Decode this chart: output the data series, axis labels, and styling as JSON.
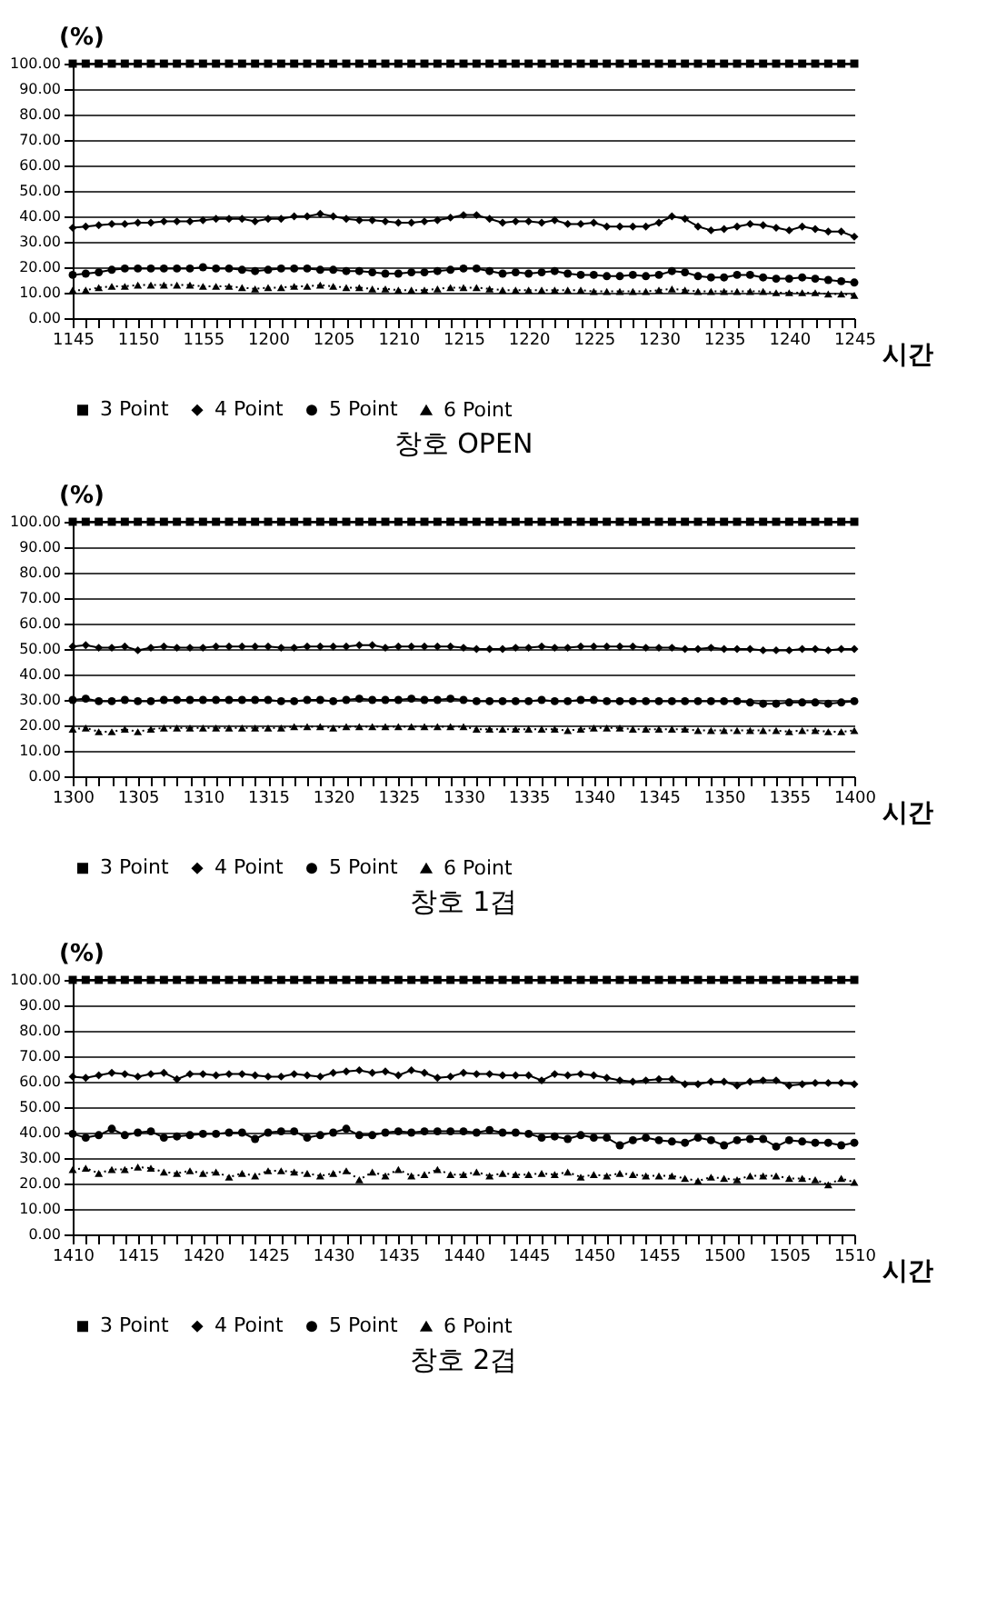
{
  "chart_data": [
    {
      "type": "line",
      "title": "창호 OPEN",
      "xlabel": "시간",
      "ylabel": "(%)",
      "ylim": [
        0,
        100
      ],
      "yticks": [
        {
          "value": 0,
          "label": "0.00"
        },
        {
          "value": 10,
          "label": "10.00"
        },
        {
          "value": 20,
          "label": "20.00"
        },
        {
          "value": 30,
          "label": "30.00"
        },
        {
          "value": 40,
          "label": "40.00"
        },
        {
          "value": 50,
          "label": "50.00"
        },
        {
          "value": 60,
          "label": "60.00"
        },
        {
          "value": 70,
          "label": "70.00"
        },
        {
          "value": 80,
          "label": "80.00"
        },
        {
          "value": 90,
          "label": "90.00"
        },
        {
          "value": 100,
          "label": "100.00"
        }
      ],
      "grid": "y",
      "legend": "bottom",
      "categories": [
        "1145",
        null,
        null,
        null,
        null,
        "1150",
        null,
        null,
        null,
        null,
        "1155",
        null,
        null,
        null,
        null,
        "1200",
        null,
        null,
        null,
        null,
        "1205",
        null,
        null,
        null,
        null,
        "1210",
        null,
        null,
        null,
        null,
        "1215",
        null,
        null,
        null,
        null,
        "1220",
        null,
        null,
        null,
        null,
        "1225",
        null,
        null,
        null,
        null,
        "1230",
        null,
        null,
        null,
        null,
        "1235",
        null,
        null,
        null,
        null,
        "1240",
        null,
        null,
        null,
        null,
        "1245"
      ],
      "series": [
        {
          "name": "3 Point",
          "color": "#000000",
          "marker": "square",
          "line_style": "solid",
          "values": [
            100,
            100,
            100,
            100,
            100,
            100,
            100,
            100,
            100,
            100,
            100,
            100,
            100,
            100,
            100,
            100,
            100,
            100,
            100,
            100,
            100,
            100,
            100,
            100,
            100,
            100,
            100,
            100,
            100,
            100,
            100,
            100,
            100,
            100,
            100,
            100,
            100,
            100,
            100,
            100,
            100,
            100,
            100,
            100,
            100,
            100,
            100,
            100,
            100,
            100,
            100,
            100,
            100,
            100,
            100,
            100,
            100,
            100,
            100,
            100,
            100
          ]
        },
        {
          "name": "4 Point",
          "color": "#000000",
          "marker": "diamond",
          "line_style": "solid",
          "values": [
            35.5,
            36,
            36.5,
            37,
            37,
            37.5,
            37.5,
            38,
            38,
            38,
            38.5,
            39,
            39,
            39,
            38,
            39,
            39,
            40,
            40,
            41,
            40,
            39,
            38.5,
            38.5,
            38,
            37.5,
            37.5,
            38,
            38.5,
            39.5,
            40.5,
            40.5,
            39,
            37.5,
            38,
            38,
            37.5,
            38.5,
            37,
            37,
            37.5,
            36,
            36,
            36,
            36,
            37.5,
            40,
            39,
            36,
            34.5,
            35,
            36,
            37,
            36.5,
            35.5,
            34.5,
            36,
            35,
            34,
            34,
            32
          ]
        },
        {
          "name": "5 Point",
          "color": "#000000",
          "marker": "circle",
          "line_style": "solid",
          "values": [
            17,
            17.5,
            18,
            19,
            19.5,
            19.5,
            19.5,
            19.5,
            19.5,
            19.5,
            20,
            19.5,
            19.5,
            19,
            18.5,
            19,
            19.5,
            19.5,
            19.5,
            19,
            19,
            18.5,
            18.5,
            18,
            17.5,
            17.5,
            18,
            18,
            18.5,
            19,
            19.5,
            19.5,
            18.5,
            17.5,
            18,
            17.5,
            18,
            18.5,
            17.5,
            17,
            17,
            16.5,
            16.5,
            17,
            16.5,
            17,
            18.5,
            18,
            16.5,
            16,
            16,
            17,
            17,
            16,
            15.5,
            15.5,
            16,
            15.5,
            15,
            14.5,
            14
          ]
        },
        {
          "name": "6 Point",
          "color": "#000000",
          "marker": "triangle",
          "line_style": "dotted",
          "values": [
            11,
            11,
            12,
            12.5,
            12.5,
            13,
            13,
            13,
            13,
            13,
            12.5,
            12.5,
            12.5,
            12,
            11.5,
            12,
            12,
            12.5,
            12.5,
            13,
            12.5,
            12,
            12,
            11.5,
            11.5,
            11,
            11,
            11,
            11.5,
            12,
            12,
            12,
            11.5,
            11,
            11,
            11,
            11,
            11,
            11,
            11,
            10.5,
            10.5,
            10.5,
            10.5,
            10.5,
            11,
            11.5,
            11,
            10.5,
            10.5,
            10.5,
            10.5,
            10.5,
            10.5,
            10,
            10,
            10,
            10,
            9.5,
            9.5,
            9
          ]
        }
      ]
    },
    {
      "type": "line",
      "title": "창호 1겹",
      "xlabel": "시간",
      "ylabel": "(%)",
      "ylim": [
        0,
        100
      ],
      "yticks": [
        {
          "value": 0,
          "label": "0.00"
        },
        {
          "value": 10,
          "label": "10.00"
        },
        {
          "value": 20,
          "label": "20.00"
        },
        {
          "value": 30,
          "label": "30.00"
        },
        {
          "value": 40,
          "label": "40.00"
        },
        {
          "value": 50,
          "label": "50.00"
        },
        {
          "value": 60,
          "label": "60.00"
        },
        {
          "value": 70,
          "label": "70.00"
        },
        {
          "value": 80,
          "label": "80.00"
        },
        {
          "value": 90,
          "label": "90.00"
        },
        {
          "value": 100,
          "label": "100.00"
        }
      ],
      "grid": "y",
      "legend": "bottom",
      "categories": [
        "1300",
        null,
        null,
        null,
        null,
        "1305",
        null,
        null,
        null,
        null,
        "1310",
        null,
        null,
        null,
        null,
        "1315",
        null,
        null,
        null,
        null,
        "1320",
        null,
        null,
        null,
        null,
        "1325",
        null,
        null,
        null,
        null,
        "1330",
        null,
        null,
        null,
        null,
        "1335",
        null,
        null,
        null,
        null,
        "1340",
        null,
        null,
        null,
        null,
        "1345",
        null,
        null,
        null,
        null,
        "1350",
        null,
        null,
        null,
        null,
        "1355",
        null,
        null,
        null,
        null,
        "1400"
      ],
      "series": [
        {
          "name": "3 Point",
          "color": "#000000",
          "marker": "square",
          "line_style": "solid",
          "values": [
            100,
            100,
            100,
            100,
            100,
            100,
            100,
            100,
            100,
            100,
            100,
            100,
            100,
            100,
            100,
            100,
            100,
            100,
            100,
            100,
            100,
            100,
            100,
            100,
            100,
            100,
            100,
            100,
            100,
            100,
            100,
            100,
            100,
            100,
            100,
            100,
            100,
            100,
            100,
            100,
            100,
            100,
            100,
            100,
            100,
            100,
            100,
            100,
            100,
            100,
            100,
            100,
            100,
            100,
            100,
            100,
            100,
            100,
            100,
            100,
            100
          ]
        },
        {
          "name": "4 Point",
          "color": "#000000",
          "marker": "diamond",
          "line_style": "solid",
          "values": [
            51,
            51.5,
            50.5,
            50.5,
            51,
            49.5,
            50.5,
            51,
            50.5,
            50.5,
            50.5,
            51,
            51,
            51,
            51,
            51,
            50.5,
            50.5,
            51,
            51,
            51,
            51,
            51.5,
            51.5,
            50.5,
            51,
            51,
            51,
            51,
            51,
            50.5,
            50,
            50,
            50,
            50.5,
            50.5,
            51,
            50.5,
            50.5,
            51,
            51,
            51,
            51,
            51,
            50.5,
            50.5,
            50.5,
            50,
            50,
            50.5,
            50,
            50,
            50,
            49.5,
            49.5,
            49.5,
            50,
            50,
            49.5,
            50,
            50
          ]
        },
        {
          "name": "5 Point",
          "color": "#000000",
          "marker": "circle",
          "line_style": "solid",
          "values": [
            30,
            30.5,
            29.5,
            29.5,
            30,
            29.5,
            29.5,
            30,
            30,
            30,
            30,
            30,
            30,
            30,
            30,
            30,
            29.5,
            29.5,
            30,
            30,
            29.5,
            30,
            30.5,
            30,
            30,
            30,
            30.5,
            30,
            30,
            30.5,
            30,
            29.5,
            29.5,
            29.5,
            29.5,
            29.5,
            30,
            29.5,
            29.5,
            30,
            30,
            29.5,
            29.5,
            29.5,
            29.5,
            29.5,
            29.5,
            29.5,
            29.5,
            29.5,
            29.5,
            29.5,
            29,
            28.5,
            28.5,
            29,
            29,
            29,
            28.5,
            29,
            29.5
          ]
        },
        {
          "name": "6 Point",
          "color": "#000000",
          "marker": "triangle",
          "line_style": "dotted",
          "values": [
            18.5,
            19,
            17.5,
            17.5,
            18.5,
            17.5,
            18.5,
            19,
            19,
            19,
            19,
            19,
            19,
            19,
            19,
            19,
            19,
            19.5,
            19.5,
            19.5,
            19,
            19.5,
            19.5,
            19.5,
            19.5,
            19.5,
            19.5,
            19.5,
            19.5,
            19.5,
            19.5,
            18.5,
            18.5,
            18.5,
            18.5,
            18.5,
            18.5,
            18.5,
            18,
            18.5,
            19,
            19,
            19,
            18.5,
            18.5,
            18.5,
            18.5,
            18.5,
            18,
            18,
            18,
            18,
            18,
            18,
            18,
            17.5,
            18,
            18,
            17.5,
            17.5,
            18
          ]
        }
      ]
    },
    {
      "type": "line",
      "title": "창호 2겹",
      "xlabel": "시간",
      "ylabel": "(%)",
      "ylim": [
        0,
        100
      ],
      "yticks": [
        {
          "value": 0,
          "label": "0.00"
        },
        {
          "value": 10,
          "label": "10.00"
        },
        {
          "value": 20,
          "label": "20.00"
        },
        {
          "value": 30,
          "label": "30.00"
        },
        {
          "value": 40,
          "label": "40.00"
        },
        {
          "value": 50,
          "label": "50.00"
        },
        {
          "value": 60,
          "label": "60.00"
        },
        {
          "value": 70,
          "label": "70.00"
        },
        {
          "value": 80,
          "label": "80.00"
        },
        {
          "value": 90,
          "label": "90.00"
        },
        {
          "value": 100,
          "label": "100.00"
        }
      ],
      "grid": "y",
      "legend": "bottom",
      "categories": [
        "1410",
        null,
        null,
        null,
        null,
        "1415",
        null,
        null,
        null,
        null,
        "1420",
        null,
        null,
        null,
        null,
        "1425",
        null,
        null,
        null,
        null,
        "1430",
        null,
        null,
        null,
        null,
        "1435",
        null,
        null,
        null,
        null,
        "1440",
        null,
        null,
        null,
        null,
        "1445",
        null,
        null,
        null,
        null,
        "1450",
        null,
        null,
        null,
        null,
        "1455",
        null,
        null,
        null,
        null,
        "1500",
        null,
        null,
        null,
        null,
        "1505",
        null,
        null,
        null,
        null,
        "1510"
      ],
      "series": [
        {
          "name": "3 Point",
          "color": "#000000",
          "marker": "square",
          "line_style": "solid",
          "values": [
            100,
            100,
            100,
            100,
            100,
            100,
            100,
            100,
            100,
            100,
            100,
            100,
            100,
            100,
            100,
            100,
            100,
            100,
            100,
            100,
            100,
            100,
            100,
            100,
            100,
            100,
            100,
            100,
            100,
            100,
            100,
            100,
            100,
            100,
            100,
            100,
            100,
            100,
            100,
            100,
            100,
            100,
            100,
            100,
            100,
            100,
            100,
            100,
            100,
            100,
            100,
            100,
            100,
            100,
            100,
            100,
            100,
            100,
            100,
            100,
            100
          ]
        },
        {
          "name": "4 Point",
          "color": "#000000",
          "marker": "diamond",
          "line_style": "solid",
          "values": [
            62,
            61.5,
            62.5,
            63.5,
            63,
            62,
            63,
            63.5,
            61,
            63,
            63,
            62.5,
            63,
            63,
            62.5,
            62,
            62,
            63,
            62.5,
            62,
            63.5,
            64,
            64.5,
            63.5,
            64,
            62.5,
            64.5,
            63.5,
            61.5,
            62,
            63.5,
            63,
            63,
            62.5,
            62.5,
            62.5,
            60.5,
            63,
            62.5,
            63,
            62.5,
            61.5,
            60.5,
            60,
            60.5,
            61,
            61,
            59,
            59,
            60,
            60,
            58.5,
            60,
            60.5,
            60.5,
            58.5,
            59,
            59.5,
            59.5,
            59.5,
            59
          ]
        },
        {
          "name": "5 Point",
          "color": "#000000",
          "marker": "circle",
          "line_style": "solid",
          "values": [
            39.5,
            38,
            39,
            41.5,
            39,
            40,
            40.5,
            38,
            38.5,
            39,
            39.5,
            39.5,
            40,
            40,
            37.5,
            40,
            40.5,
            40.5,
            38,
            39,
            40,
            41.5,
            39,
            39,
            40,
            40.5,
            40,
            40.5,
            40.5,
            40.5,
            40.5,
            40,
            41,
            40,
            40,
            39.5,
            38,
            38.5,
            37.5,
            39,
            38,
            38,
            35,
            37,
            38,
            37,
            36.5,
            36,
            38,
            37,
            35,
            37,
            37.5,
            37.5,
            34.5,
            37,
            36.5,
            36,
            36,
            35,
            36
          ]
        },
        {
          "name": "6 Point",
          "color": "#000000",
          "marker": "triangle",
          "line_style": "dotted",
          "values": [
            25.5,
            26,
            24,
            25.5,
            25.5,
            26.5,
            26,
            24.5,
            24,
            25,
            24,
            24.5,
            22.5,
            24,
            23,
            25,
            25,
            24.5,
            24,
            23,
            24,
            25,
            21.5,
            24.5,
            23,
            25.5,
            23,
            23.5,
            25.5,
            23.5,
            23.5,
            24.5,
            23,
            24,
            23.5,
            23.5,
            24,
            23.5,
            24.5,
            22.5,
            23.5,
            23,
            24,
            23.5,
            23,
            23,
            23,
            22,
            21,
            22.5,
            22,
            21.5,
            23,
            23,
            23,
            22,
            22,
            21.5,
            19.5,
            22,
            20.5
          ]
        }
      ]
    }
  ]
}
